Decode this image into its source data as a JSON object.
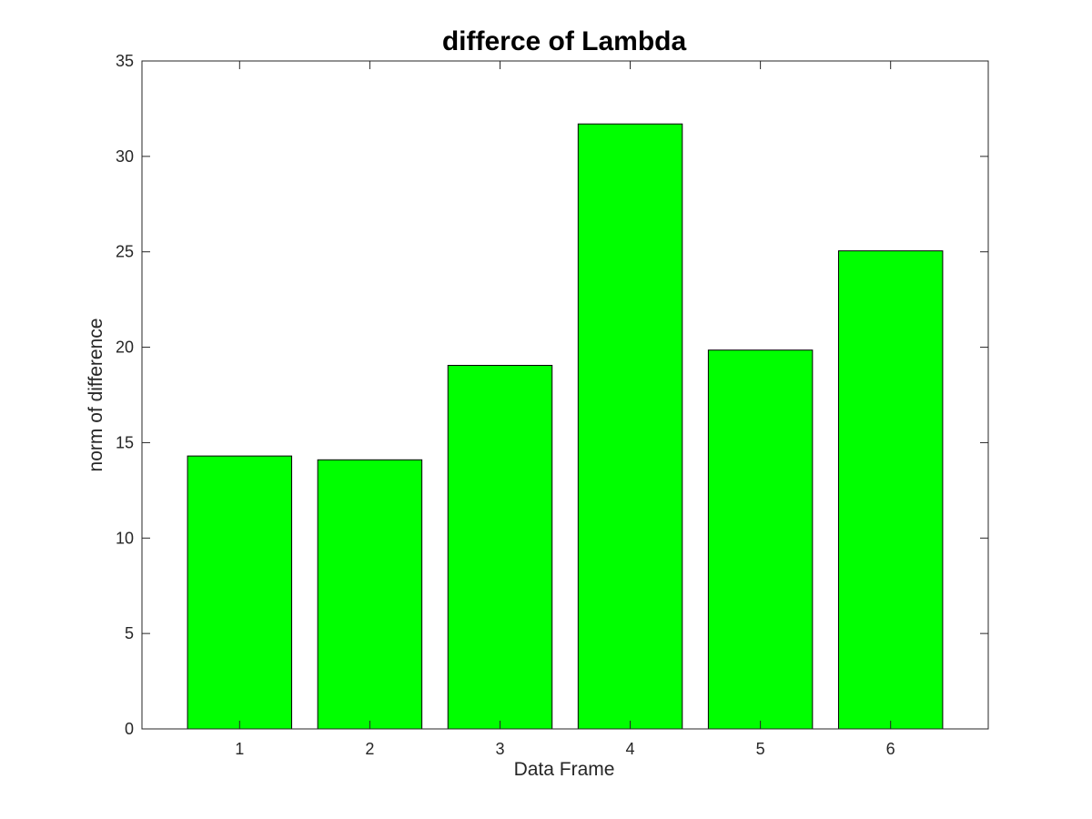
{
  "chart_data": {
    "type": "bar",
    "title": "differce of Lambda",
    "xlabel": "Data Frame",
    "ylabel": "norm of difference",
    "categories": [
      "1",
      "2",
      "3",
      "4",
      "5",
      "6"
    ],
    "values": [
      14.3,
      14.1,
      19.05,
      31.7,
      19.85,
      25.05
    ],
    "xlim": [
      0.25,
      6.75
    ],
    "ylim": [
      0,
      35
    ],
    "yticks": [
      0,
      5,
      10,
      15,
      20,
      25,
      30,
      35
    ],
    "bar_color": "#00ff00",
    "grid": false
  }
}
